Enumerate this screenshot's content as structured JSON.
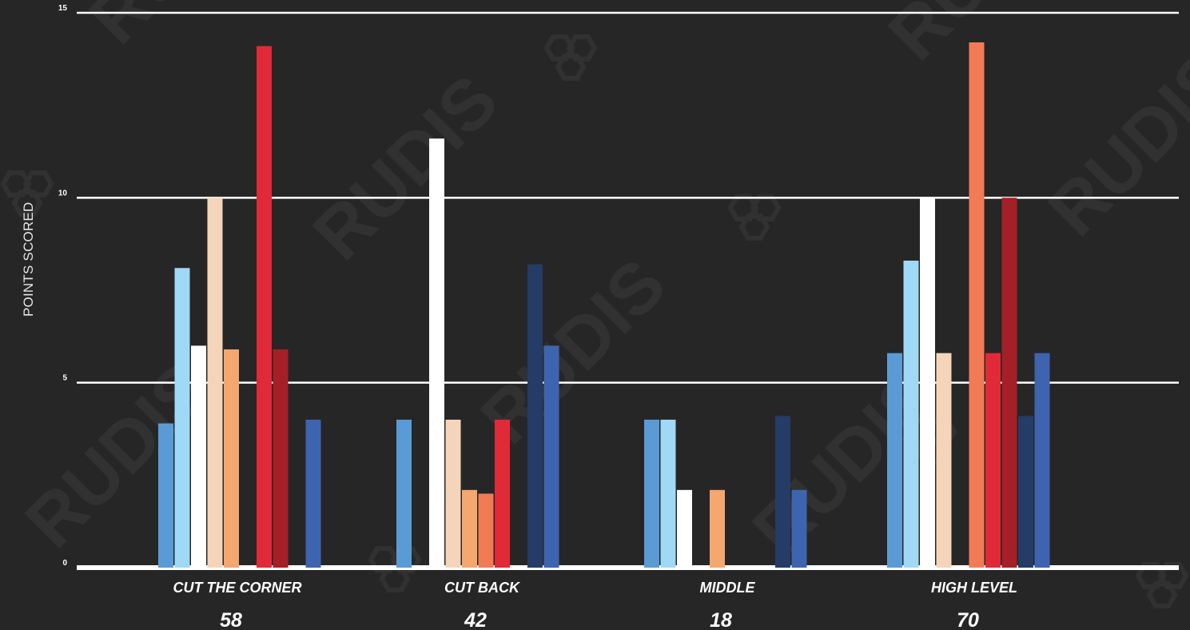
{
  "chart_data": {
    "type": "bar",
    "ylabel": "POINTS SCORED",
    "xlabel": "",
    "ylim": [
      0,
      15
    ],
    "yticks": [
      0,
      5,
      10,
      15
    ],
    "grid": true,
    "categories": [
      "CUT THE CORNER",
      "CUT BACK",
      "MIDDLE",
      "HIGH LEVEL"
    ],
    "totals": [
      "58",
      "42",
      "18",
      "70"
    ],
    "series": [
      {
        "color": "#5b9bd5",
        "values": [
          3.9,
          4.0,
          4.0,
          5.8
        ]
      },
      {
        "color": "#9fd9f5",
        "values": [
          8.1,
          0,
          4.0,
          8.3
        ]
      },
      {
        "color": "#ffffff",
        "values": [
          6.0,
          11.6,
          2.1,
          10.0
        ]
      },
      {
        "color": "#f4d5b9",
        "values": [
          10.0,
          4.0,
          0,
          5.8
        ]
      },
      {
        "color": "#f4a76e",
        "values": [
          5.9,
          2.1,
          2.1,
          0
        ]
      },
      {
        "color": "#f27b56",
        "values": [
          0,
          2.0,
          0,
          14.2
        ]
      },
      {
        "color": "#e02a37",
        "values": [
          14.1,
          4.0,
          0,
          5.8
        ]
      },
      {
        "color": "#a51f27",
        "values": [
          5.9,
          0,
          0,
          10.0
        ]
      },
      {
        "color": "#253c66",
        "values": [
          0,
          8.2,
          4.1,
          4.1
        ]
      },
      {
        "color": "#3e64b0",
        "values": [
          4.0,
          6.0,
          2.1,
          5.8
        ]
      }
    ]
  },
  "watermark": {
    "text": "RUDIS"
  }
}
